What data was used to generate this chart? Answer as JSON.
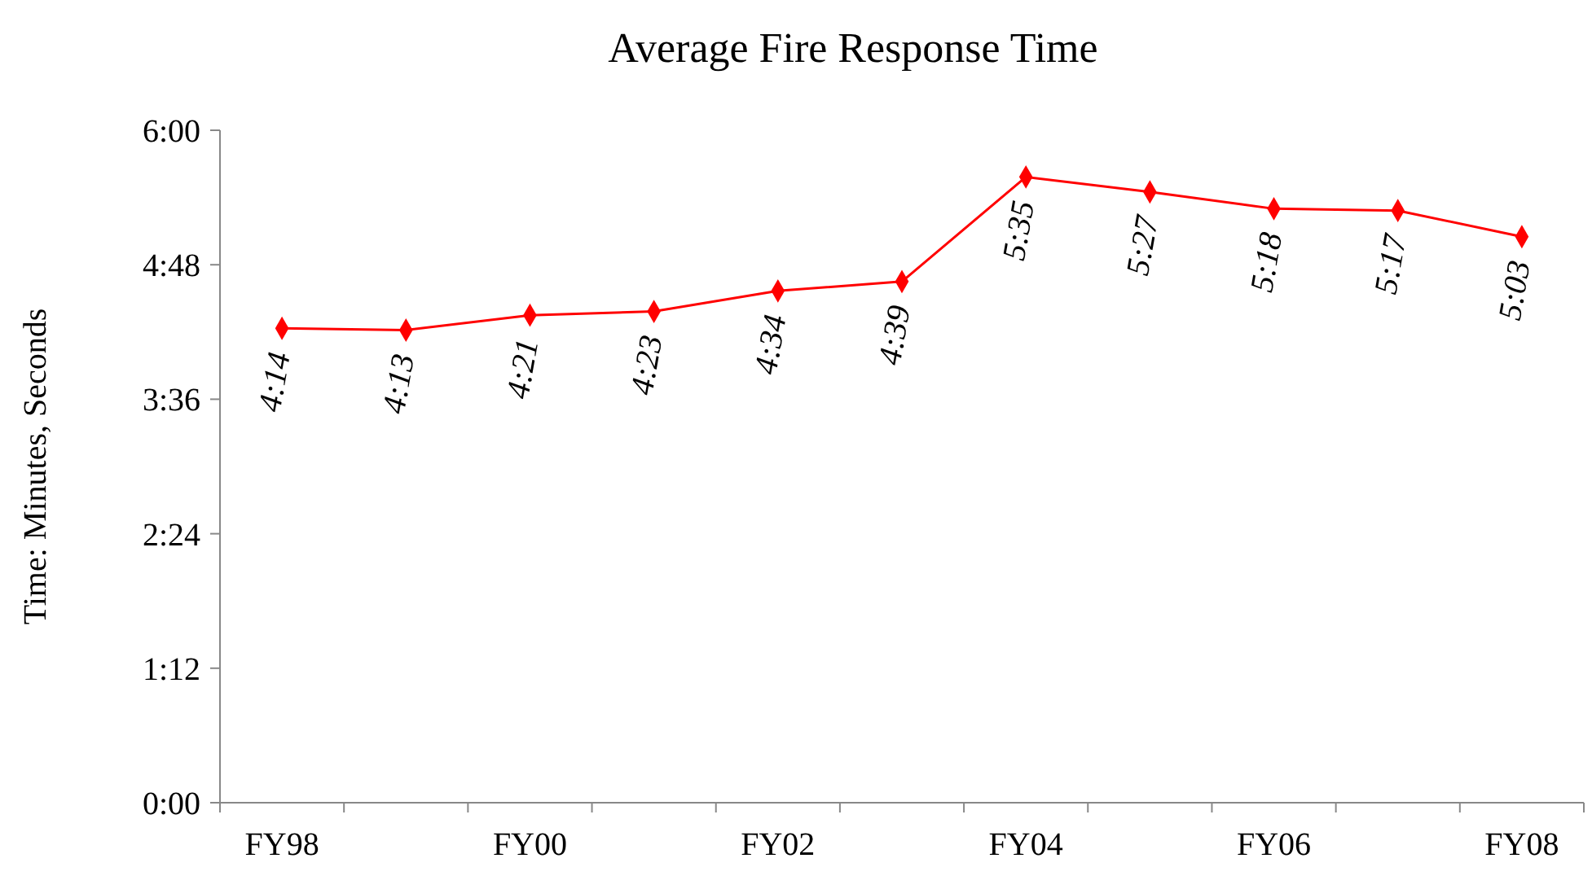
{
  "chart_data": {
    "type": "line",
    "title": "Average Fire Response Time",
    "ylabel": "Time: Minutes, Seconds",
    "categories": [
      "FY98",
      null,
      "FY00",
      null,
      "FY02",
      null,
      "FY04",
      null,
      "FY06",
      null,
      "FY08"
    ],
    "series": [
      {
        "color": "#ff0000",
        "values": [
          4.2333,
          4.2167,
          4.35,
          4.3833,
          4.5667,
          4.65,
          5.5833,
          5.45,
          5.3,
          5.2833,
          5.05
        ],
        "value_labels": [
          "4:14",
          "4:13",
          "4:21",
          "4:23",
          "4:34",
          "4:39",
          "5:35",
          "5:27",
          "5:18",
          "5:17",
          "5:03"
        ]
      }
    ],
    "ylim": [
      0,
      6
    ],
    "yticks": [
      {
        "value": 0,
        "label": "0:00"
      },
      {
        "value": 1.2,
        "label": "1:12"
      },
      {
        "value": 2.4,
        "label": "2:24"
      },
      {
        "value": 3.6,
        "label": "3:36"
      },
      {
        "value": 4.8,
        "label": "4:48"
      },
      {
        "value": 6,
        "label": "6:00"
      }
    ],
    "marker": "diamond"
  }
}
